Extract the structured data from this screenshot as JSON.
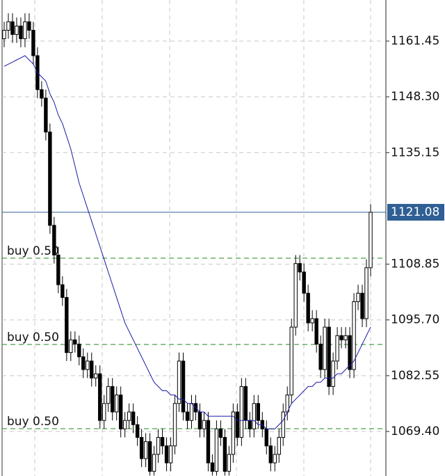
{
  "chart_data": {
    "type": "candlestick",
    "open": [
      1162,
      1164,
      1166,
      1163,
      1165,
      1162,
      1166,
      1164,
      1158,
      1150,
      1148,
      1140,
      1118,
      1111,
      1104,
      1101,
      1088,
      1091,
      1090,
      1087,
      1084,
      1086,
      1082,
      1083,
      1072,
      1076,
      1080,
      1074,
      1078,
      1070,
      1072,
      1074,
      1071,
      1068,
      1063,
      1067,
      1060,
      1064,
      1068,
      1066,
      1062,
      1066,
      1076,
      1086,
      1074,
      1072,
      1076,
      1074,
      1070,
      1072,
      1062,
      1060,
      1070,
      1068,
      1060,
      1064,
      1074,
      1068,
      1080,
      1072,
      1070,
      1076,
      1072,
      1070,
      1066,
      1062,
      1064,
      1068,
      1074,
      1078,
      1094,
      1109,
      1107,
      1102,
      1095,
      1096,
      1090,
      1084,
      1094,
      1080,
      1086,
      1092,
      1091,
      1092,
      1084,
      1100,
      1102,
      1096,
      1108
    ],
    "high": [
      1166,
      1168,
      1168,
      1167,
      1167,
      1168,
      1168,
      1166,
      1160,
      1152,
      1150,
      1142,
      1120,
      1113,
      1106,
      1103,
      1093,
      1093,
      1092,
      1089,
      1088,
      1088,
      1085,
      1085,
      1078,
      1082,
      1082,
      1080,
      1080,
      1074,
      1076,
      1076,
      1073,
      1070,
      1069,
      1069,
      1066,
      1070,
      1070,
      1068,
      1068,
      1078,
      1088,
      1088,
      1076,
      1078,
      1078,
      1076,
      1074,
      1074,
      1064,
      1072,
      1072,
      1070,
      1066,
      1076,
      1076,
      1082,
      1082,
      1074,
      1078,
      1078,
      1074,
      1072,
      1068,
      1066,
      1070,
      1076,
      1080,
      1096,
      1111,
      1111,
      1109,
      1104,
      1098,
      1098,
      1092,
      1096,
      1096,
      1088,
      1094,
      1094,
      1094,
      1094,
      1102,
      1104,
      1104,
      1110,
      1123
    ],
    "low": [
      1160,
      1162,
      1161,
      1161,
      1160,
      1160,
      1162,
      1156,
      1148,
      1146,
      1138,
      1116,
      1109,
      1102,
      1099,
      1086,
      1086,
      1088,
      1085,
      1082,
      1082,
      1080,
      1080,
      1070,
      1070,
      1074,
      1072,
      1072,
      1068,
      1068,
      1070,
      1069,
      1066,
      1061,
      1061,
      1059,
      1059,
      1062,
      1064,
      1060,
      1060,
      1064,
      1074,
      1072,
      1070,
      1070,
      1072,
      1068,
      1068,
      1060,
      1059,
      1059,
      1066,
      1059,
      1059,
      1062,
      1066,
      1066,
      1070,
      1068,
      1068,
      1070,
      1068,
      1064,
      1060,
      1060,
      1062,
      1066,
      1072,
      1076,
      1092,
      1105,
      1100,
      1093,
      1093,
      1088,
      1082,
      1082,
      1078,
      1078,
      1084,
      1089,
      1089,
      1082,
      1082,
      1098,
      1094,
      1094,
      1106
    ],
    "close": [
      1164,
      1166,
      1163,
      1165,
      1162,
      1166,
      1164,
      1158,
      1150,
      1148,
      1140,
      1118,
      1111,
      1104,
      1101,
      1088,
      1091,
      1090,
      1087,
      1084,
      1086,
      1082,
      1083,
      1072,
      1076,
      1080,
      1074,
      1078,
      1070,
      1072,
      1074,
      1071,
      1068,
      1063,
      1067,
      1060,
      1064,
      1068,
      1066,
      1062,
      1066,
      1076,
      1086,
      1074,
      1072,
      1076,
      1074,
      1070,
      1072,
      1062,
      1060,
      1070,
      1068,
      1060,
      1064,
      1074,
      1068,
      1080,
      1072,
      1070,
      1076,
      1072,
      1070,
      1066,
      1062,
      1064,
      1068,
      1074,
      1078,
      1094,
      1109,
      1107,
      1102,
      1095,
      1096,
      1090,
      1084,
      1094,
      1080,
      1086,
      1092,
      1091,
      1092,
      1084,
      1100,
      1102,
      1096,
      1108,
      1121.08
    ],
    "moving_average": {
      "color": "#1a1aa8",
      "values": [
        1155.5,
        1156,
        1156.5,
        1157,
        1157.5,
        1158,
        1157,
        1156,
        1154,
        1153,
        1152,
        1149,
        1147,
        1144,
        1142,
        1139,
        1136,
        1132,
        1128,
        1125,
        1122,
        1119,
        1116,
        1113,
        1110,
        1107,
        1104,
        1101,
        1098,
        1095,
        1093,
        1091,
        1089,
        1087,
        1085,
        1083,
        1081,
        1080,
        1079,
        1079,
        1078,
        1078,
        1077,
        1077,
        1076,
        1076,
        1075,
        1074,
        1074,
        1073,
        1073,
        1073,
        1073,
        1073,
        1073,
        1073,
        1072,
        1072,
        1072,
        1072,
        1072,
        1071,
        1071,
        1070,
        1070,
        1070,
        1071,
        1072,
        1074,
        1076,
        1077,
        1078,
        1079,
        1080,
        1080,
        1081,
        1081,
        1082,
        1082,
        1082,
        1083,
        1083,
        1084,
        1085,
        1086,
        1088,
        1090,
        1092,
        1094
      ]
    },
    "ylim": [
      1058.9,
      1171.13
    ],
    "yticks": [
      1161.45,
      {
        "value": 1148.3,
        "label": "1148.30"
      },
      1135.15,
      1108.85,
      {
        "value": 1095.7,
        "label": "1095.70"
      },
      1082.55,
      {
        "value": 1069.4,
        "label": "1069.40"
      }
    ],
    "current_price": 1121.08,
    "current_price_color": "#2f5f94",
    "orders": [
      {
        "label": "buy 0.50",
        "price": 1110.26
      },
      {
        "label": "buy 0.50",
        "price": 1089.91
      },
      {
        "label": "buy 0.50",
        "price": 1070.06
      }
    ],
    "order_color": "#1d8a1d",
    "grid": true
  }
}
